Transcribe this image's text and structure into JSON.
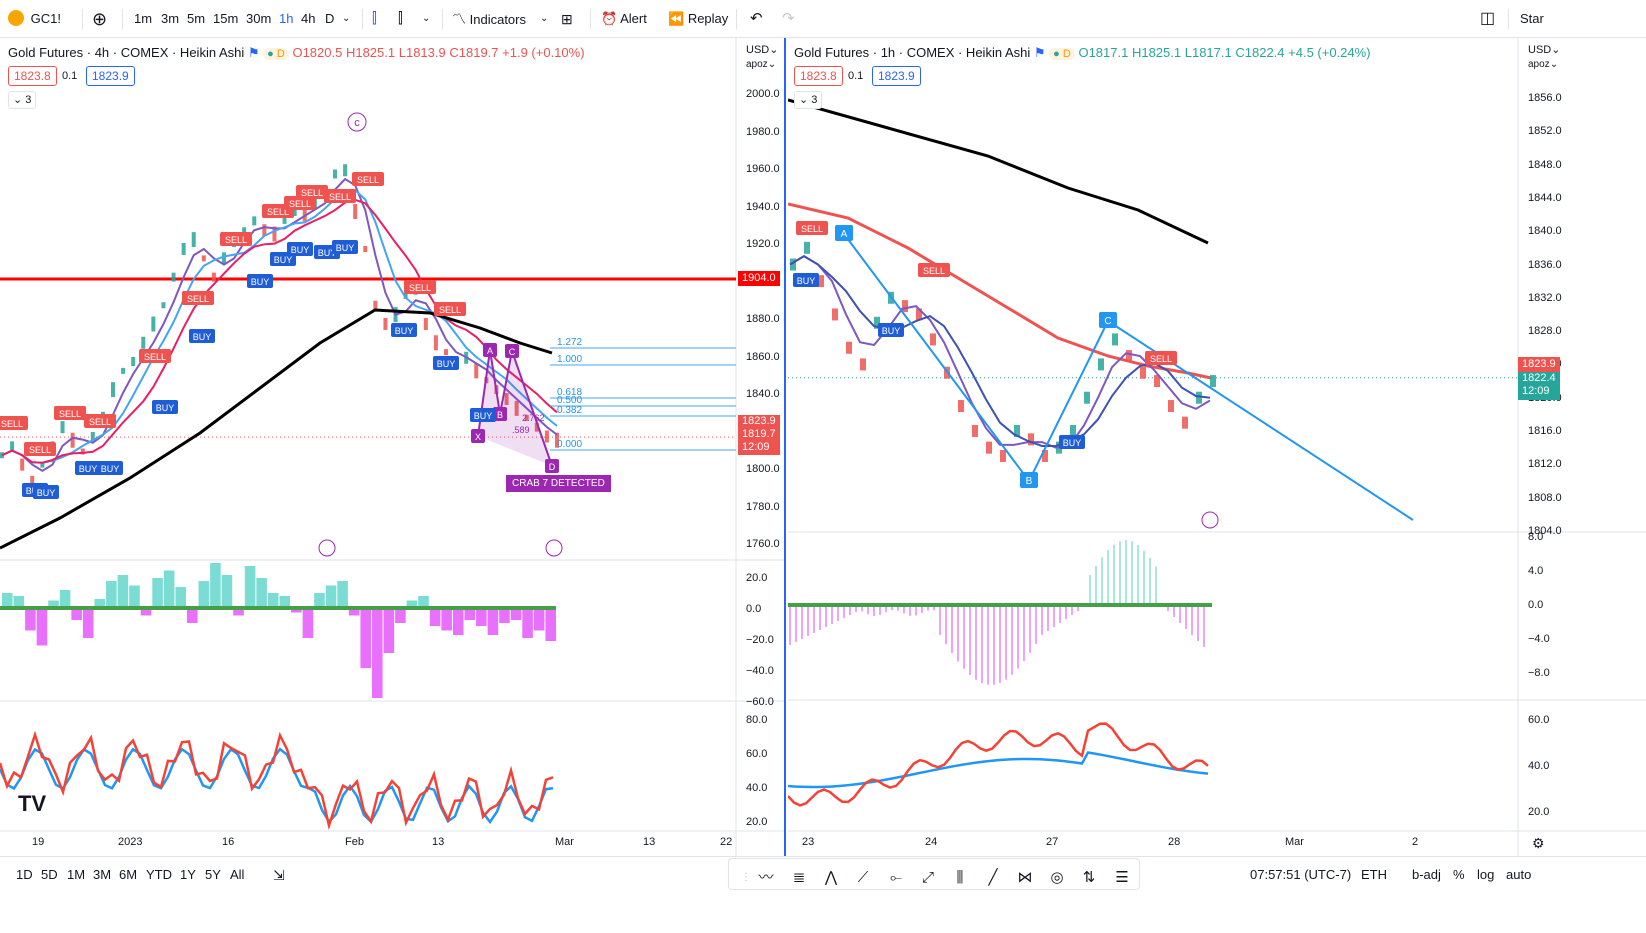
{
  "toolbar": {
    "symbol": "GC1!",
    "timeframes": [
      "1m",
      "3m",
      "5m",
      "15m",
      "30m",
      "1h",
      "4h",
      "D"
    ],
    "active_timeframe": "1h",
    "indicators_label": "Indicators",
    "alert_label": "Alert",
    "replay_label": "Replay",
    "right_label": "Star"
  },
  "left_chart": {
    "title": "Gold Futures · 4h · COMEX · Heikin Ashi",
    "ohlc": {
      "o": "O1820.5",
      "h": "H1825.1",
      "l": "L1813.9",
      "c": "C1819.7",
      "chg": "+1.9 (+0.10%)"
    },
    "bid": "1823.8",
    "spread": "0.1",
    "ask": "1823.9",
    "collapse": "3",
    "currency": "USD",
    "apoz": "apoz",
    "y_labels": [
      "2000.0",
      "1980.0",
      "1960.0",
      "1940.0",
      "1920.0",
      "1900.0",
      "1880.0",
      "1860.0",
      "1840.0",
      "1820.0",
      "1800.0",
      "1780.0",
      "1760.0"
    ],
    "tag_red_line": "1904.0",
    "tag_price1": "1823.9",
    "tag_price2": "1819.7",
    "tag_time": "12:09",
    "osc_labels": [
      "20.0",
      "0.0",
      "−20.0",
      "−40.0",
      "−60.0"
    ],
    "rsi_labels": [
      "80.0",
      "60.0",
      "40.0",
      "20.0"
    ],
    "x_labels": [
      "19",
      "2023",
      "16",
      "Feb",
      "13",
      "Mar",
      "13",
      "22"
    ],
    "fib_levels": [
      "1.272",
      "1.000",
      "0.618",
      "0.500",
      "0.382",
      "0.000"
    ],
    "pattern_label": "CRAB 7 DETECTED",
    "pattern_points": [
      "X",
      "A",
      "B",
      "C",
      "D"
    ],
    "wave_label": "c",
    "sell_label": "SELL",
    "buy_label": "BUY",
    "ratio_a": ".589",
    "ratio_b": "2.762"
  },
  "right_chart": {
    "title": "Gold Futures · 1h · COMEX · Heikin Ashi",
    "ohlc": {
      "o": "O1817.1",
      "h": "H1825.1",
      "l": "L1817.1",
      "c": "C1822.4",
      "chg": "+4.5 (+0.24%)"
    },
    "bid": "1823.8",
    "spread": "0.1",
    "ask": "1823.9",
    "collapse": "3",
    "currency": "USD",
    "apoz": "apoz",
    "y_labels": [
      "1856.0",
      "1852.0",
      "1848.0",
      "1844.0",
      "1840.0",
      "1836.0",
      "1832.0",
      "1828.0",
      "1824.0",
      "1820.0",
      "1816.0",
      "1812.0",
      "1808.0",
      "1804.0"
    ],
    "tag_price1": "1823.9",
    "tag_price2": "1822.4",
    "tag_time": "12:09",
    "osc_labels": [
      "8.0",
      "4.0",
      "0.0",
      "−4.0",
      "−8.0"
    ],
    "rsi_labels": [
      "60.0",
      "40.0",
      "20.0"
    ],
    "x_labels": [
      "23",
      "24",
      "27",
      "28",
      "Mar",
      "2"
    ],
    "abc_points": [
      "A",
      "B",
      "C"
    ]
  },
  "bottom": {
    "ranges": [
      "1D",
      "5D",
      "1M",
      "3M",
      "6M",
      "YTD",
      "1Y",
      "5Y",
      "All"
    ],
    "time": "07:57:51 (UTC-7)",
    "session": "ETH",
    "badj": "b-adj",
    "percent": "%",
    "log": "log",
    "auto": "auto"
  },
  "colors": {
    "accent": "#2962ff",
    "up": "#26a69a",
    "down": "#ef5350",
    "pattern": "#9c27b0",
    "hline": "#ff0000"
  }
}
